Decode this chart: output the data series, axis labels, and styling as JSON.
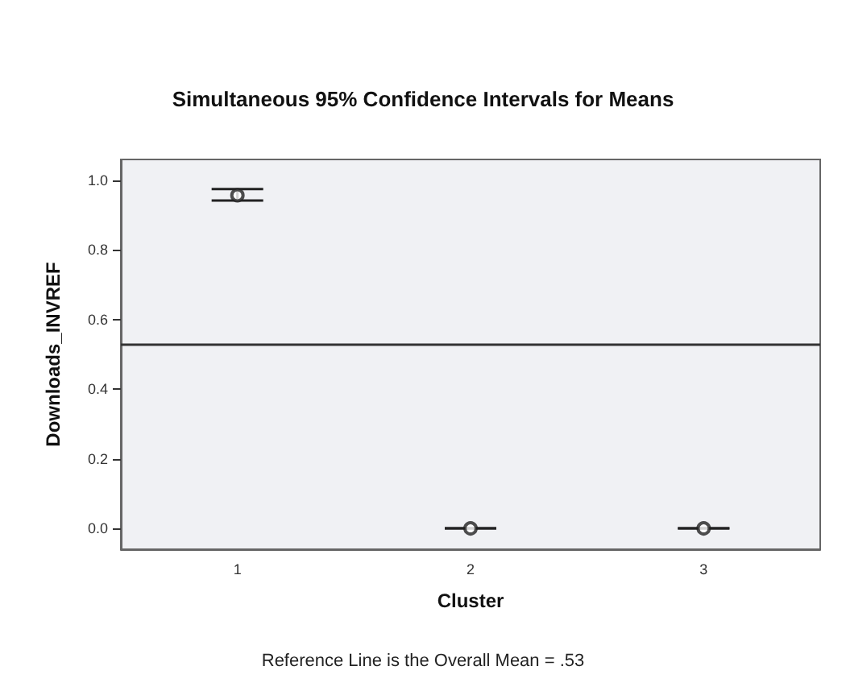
{
  "chart_data": {
    "type": "scatter",
    "title": "Simultaneous 95% Confidence Intervals for Means",
    "xlabel": "Cluster",
    "ylabel": "Downloads_INVREF",
    "categories": [
      "1",
      "2",
      "3"
    ],
    "values": [
      0.957,
      0,
      0
    ],
    "errors": [
      [
        0.942,
        0.975
      ],
      [
        0,
        0
      ],
      [
        0,
        0
      ]
    ],
    "color": "#222222",
    "marker": "circle",
    "ylim": [
      -0.06,
      1.06
    ],
    "yticks": [
      {
        "value": 0,
        "label": "0.0"
      },
      0.2,
      0.4,
      0.6,
      0.8,
      {
        "value": 1,
        "label": "1.0"
      }
    ],
    "ref_lines": [
      {
        "axis": "y",
        "value": 0.53,
        "color": "#333333"
      }
    ],
    "annotations": [
      "Reference Line is the Overall Mean = .53"
    ],
    "grid": false
  }
}
